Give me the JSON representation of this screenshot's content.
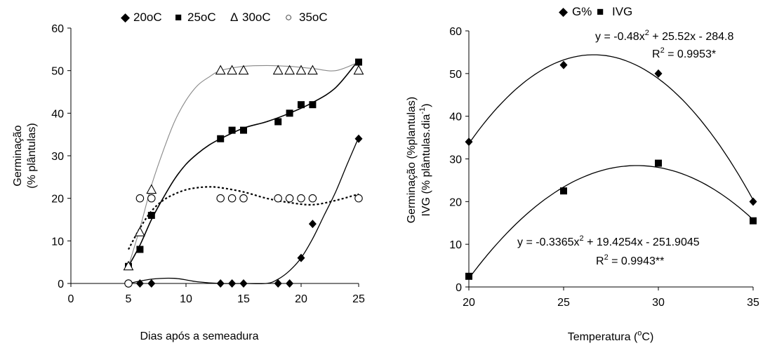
{
  "chart_data": [
    {
      "type": "scatter",
      "xlabel": "Dias após a semeadura",
      "ylabel_line1": "Germinação",
      "ylabel_line2": "(% plântulas)",
      "xlim": [
        0,
        25
      ],
      "ylim": [
        0,
        60
      ],
      "xticks": [
        "0",
        "5",
        "10",
        "15",
        "20",
        "25"
      ],
      "yticks": [
        "0",
        "10",
        "20",
        "30",
        "40",
        "50",
        "60"
      ],
      "legend_position": "top",
      "series": [
        {
          "name": "20oC",
          "symbol": "diamond",
          "glyph": "◆",
          "x": [
            5,
            6,
            7,
            13,
            14,
            15,
            18,
            19,
            20,
            21,
            25
          ],
          "y": [
            0,
            0,
            0,
            0,
            0,
            0,
            0,
            0,
            6,
            14,
            34
          ],
          "trend": {
            "x": [
              5,
              7,
              9,
              11,
              13,
              15,
              17,
              18,
              19,
              20,
              21,
              22,
              23,
              24,
              25
            ],
            "y": [
              0,
              1,
              1.2,
              0.4,
              0,
              0,
              0,
              1,
              3,
              6,
              10.5,
              16,
              21.5,
              28,
              34.3
            ]
          }
        },
        {
          "name": "25oC",
          "symbol": "square",
          "glyph": "■",
          "x": [
            5,
            6,
            7,
            13,
            14,
            15,
            18,
            19,
            20,
            21,
            25
          ],
          "y": [
            4,
            8,
            16,
            34,
            36,
            36,
            38,
            40,
            42,
            42,
            52
          ],
          "trend": {
            "x": [
              5,
              6,
              7,
              8,
              9,
              10,
              11,
              12,
              13,
              15,
              17,
              19,
              21,
              23,
              25
            ],
            "y": [
              4,
              9,
              15,
              20,
              24.5,
              28,
              30.5,
              32.5,
              34,
              36.5,
              38,
              40,
              42.5,
              46,
              52.5
            ]
          }
        },
        {
          "name": "30oC",
          "symbol": "triangle",
          "glyph": "Δ",
          "x": [
            5,
            6,
            7,
            13,
            14,
            15,
            18,
            19,
            20,
            21,
            25
          ],
          "y": [
            4,
            12,
            22,
            50,
            50,
            50,
            50,
            50,
            50,
            50,
            50
          ],
          "trend": {
            "x": [
              5,
              6,
              7,
              8,
              9,
              10,
              11,
              12,
              13,
              15,
              17,
              19,
              21,
              23,
              25
            ],
            "y": [
              4,
              13,
              23,
              31,
              38,
              43,
              46.5,
              48.5,
              50,
              51,
              51.2,
              51,
              50.5,
              50,
              52
            ]
          }
        },
        {
          "name": "35oC",
          "symbol": "circle",
          "glyph": "○",
          "x": [
            5,
            6,
            7,
            13,
            14,
            15,
            18,
            19,
            20,
            21,
            25
          ],
          "y": [
            0,
            20,
            20,
            20,
            20,
            20,
            20,
            20,
            20,
            20,
            20
          ],
          "trend": {
            "x": [
              5,
              6,
              7,
              8,
              9,
              10,
              11,
              12,
              13,
              15,
              17,
              19,
              21,
              23,
              25
            ],
            "y": [
              8,
              13,
              17,
              19.5,
              21,
              22,
              22.5,
              22.7,
              22.5,
              21.5,
              20,
              19,
              18.5,
              19.5,
              21
            ]
          }
        }
      ]
    },
    {
      "type": "scatter",
      "xlabel": "Temperatura (",
      "xlabel_sup": "o",
      "xlabel_end": "C)",
      "ylabel_line1": "Germinação (%plantulas)",
      "ylabel_line2": "IVG (% plântulas.dia",
      "ylabel_sup": "-1",
      "ylabel_end": ")",
      "xlim": [
        20,
        35
      ],
      "ylim": [
        0,
        60
      ],
      "xticks": [
        "20",
        "25",
        "30",
        "35"
      ],
      "yticks": [
        "0",
        "10",
        "20",
        "30",
        "40",
        "50",
        "60"
      ],
      "legend_position": "top",
      "series": [
        {
          "name": "G%",
          "symbol": "diamond",
          "glyph": "◆",
          "x": [
            20,
            25,
            30,
            35
          ],
          "y": [
            34,
            52,
            50,
            20
          ],
          "fit": {
            "a": -0.48,
            "b": 25.52,
            "c": -284.8
          },
          "equation": "y = -0.48x",
          "equation_sup": "2",
          "equation_end": " + 25.52x - 284.8",
          "r2_pre": "R",
          "r2_sup": "2",
          "r2_end": " = 0.9953*"
        },
        {
          "name": "IVG",
          "symbol": "square",
          "glyph": "■",
          "x": [
            20,
            25,
            30,
            35
          ],
          "y": [
            2.5,
            22.5,
            29,
            15.5
          ],
          "fit": {
            "a": -0.3365,
            "b": 19.4254,
            "c": -251.9045
          },
          "equation": "y = -0.3365x",
          "equation_sup": "2",
          "equation_end": " + 19.4254x - 251.9045",
          "r2_pre": "R",
          "r2_sup": "2",
          "r2_end": " = 0.9943**"
        }
      ]
    }
  ]
}
